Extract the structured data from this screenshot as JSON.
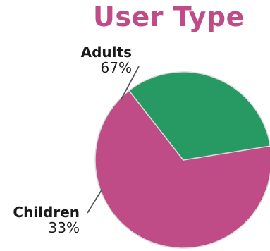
{
  "chart_data": {
    "type": "pie",
    "title": "User Type",
    "slices": [
      {
        "label": "Adults",
        "value": 67,
        "value_label": "67%",
        "color": "#bf4b87"
      },
      {
        "label": "Children",
        "value": 33,
        "value_label": "33%",
        "color": "#279a63"
      }
    ],
    "start_angle_deg": 128,
    "direction": "counterclockwise",
    "legend": "none"
  }
}
